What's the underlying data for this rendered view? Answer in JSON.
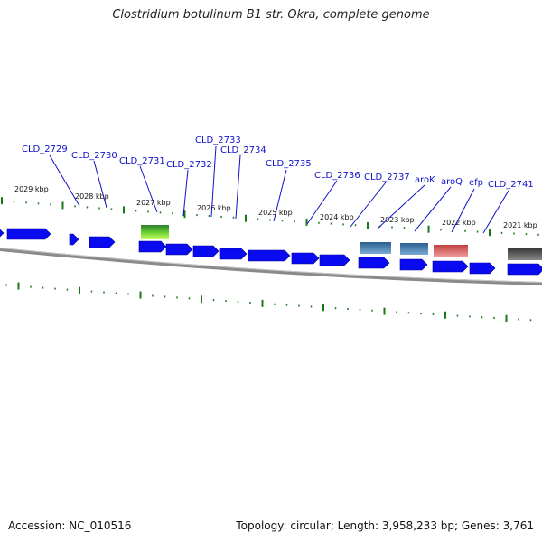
{
  "title": "Clostridium botulinum B1 str. Okra, complete genome",
  "footer": {
    "accession": "Accession: NC_010516",
    "summary": "Topology: circular; Length: 3,958,233 bp; Genes: 3,761"
  },
  "colors": {
    "gene": "#0a0af0",
    "tick": "#1a7a1a",
    "label": "#1010c8",
    "backbone": "#8a8a8a",
    "highlight_green": "#66cc33",
    "highlight_steel": "#4a82b4",
    "highlight_pink": "#f08080",
    "highlight_gray": "#555555"
  },
  "ruler_labels": [
    "2029 kbp",
    "2028 kbp",
    "2027 kbp",
    "2026 kbp",
    "2025 kbp",
    "2024 kbp",
    "2023 kbp",
    "2022 kbp",
    "2021 kbp"
  ],
  "gene_labels": [
    "CLD_2729",
    "CLD_2730",
    "CLD_2731",
    "CLD_2732",
    "CLD_2733",
    "CLD_2734",
    "CLD_2735",
    "CLD_2736",
    "CLD_2737",
    "aroK",
    "aroQ",
    "efp",
    "CLD_2741"
  ]
}
